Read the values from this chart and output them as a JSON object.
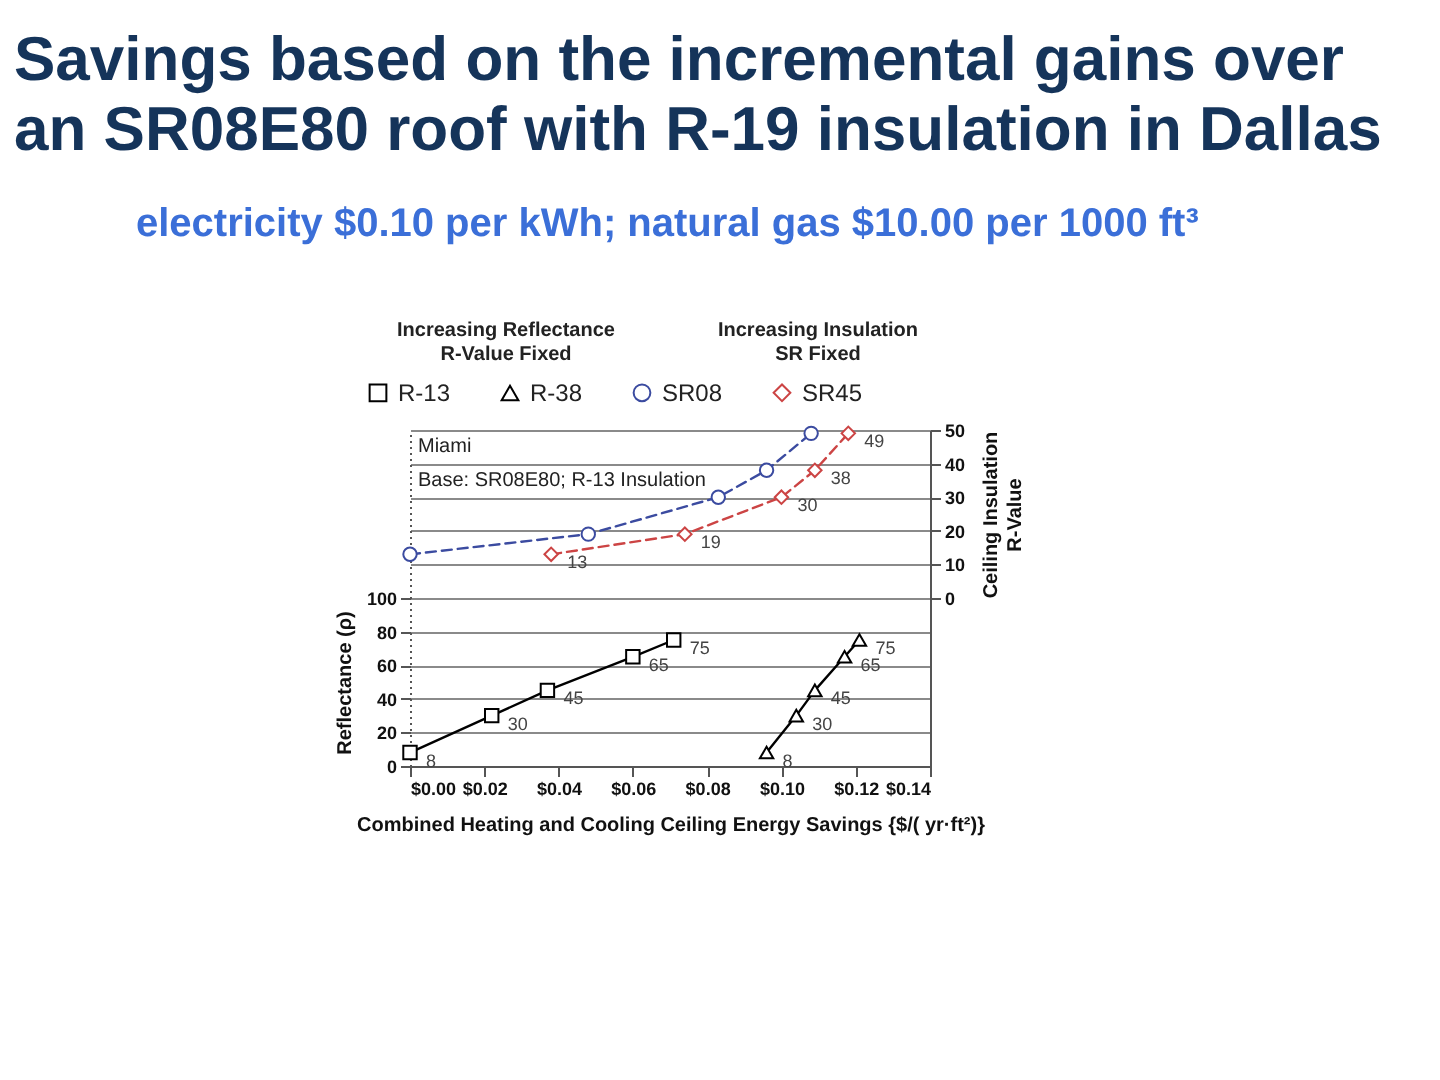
{
  "chart_data": {
    "type": "line",
    "title": "Savings based on the incremental gains over an SR08E80 roof with R-19 insulation in Dallas",
    "subtitle": "electricity $0.10 per kWh; natural gas $10.00 per 1000 ft³",
    "xlabel": "Combined Heating and Cooling Ceiling Energy Savings {$/( yr·ft²)}",
    "ylabel": "Reflectance (ρ)",
    "y2label": "Ceiling Insulation R-Value",
    "annotations": [
      "Increasing Reflectance R-Value Fixed",
      "Increasing Insulation SR Fixed",
      "Miami",
      "Base: SR08E80; R-13 Insulation"
    ],
    "xlim": [
      0,
      0.14
    ],
    "xticks": [
      {
        "value": 0,
        "label": "$0.00"
      },
      {
        "value": 0.02,
        "label": "$0.02"
      },
      {
        "value": 0.04,
        "label": "$0.04"
      },
      {
        "value": 0.06,
        "label": "$0.06"
      },
      {
        "value": 0.08,
        "label": "$0.08"
      },
      {
        "value": 0.1,
        "label": "$0.10"
      },
      {
        "value": 0.12,
        "label": "$0.12"
      },
      {
        "value": 0.14,
        "label": "$0.14"
      }
    ],
    "ylim": [
      0,
      200
    ],
    "yticks": [
      0,
      20,
      40,
      60,
      80,
      100
    ],
    "y2lim": [
      -50,
      50
    ],
    "y2ticks": [
      0,
      10,
      20,
      30,
      40,
      50
    ],
    "grid": "y",
    "legend": "top",
    "series": [
      {
        "name": "R-13",
        "color": "#000000",
        "marker": "square",
        "line_style": "solid",
        "x": [
          0.0,
          0.022,
          0.037,
          0.06,
          0.071
        ],
        "values": [
          8,
          30,
          45,
          65,
          75
        ],
        "value_labels": [
          "8",
          "30",
          "45",
          "65",
          "75"
        ]
      },
      {
        "name": "R-38",
        "color": "#000000",
        "marker": "triangle",
        "line_style": "solid",
        "x": [
          0.096,
          0.104,
          0.109,
          0.117,
          0.121
        ],
        "values": [
          8,
          30,
          45,
          65,
          75
        ],
        "value_labels": [
          "8",
          "30",
          "45",
          "65",
          "75"
        ]
      },
      {
        "name": "SR08",
        "color": "#3b4ba0",
        "marker": "circle",
        "line_style": "dashed",
        "axis": "y2",
        "x": [
          0.0,
          0.048,
          0.083,
          0.096,
          0.108
        ],
        "values": [
          13,
          19,
          30,
          38,
          49
        ]
      },
      {
        "name": "SR45",
        "color": "#cc4444",
        "marker": "diamond",
        "line_style": "dashed",
        "axis": "y2",
        "x": [
          0.038,
          0.074,
          0.1,
          0.109,
          0.118
        ],
        "values": [
          13,
          19,
          30,
          38,
          49
        ],
        "value_labels": [
          "13",
          "19",
          "30",
          "38",
          "49"
        ]
      }
    ]
  }
}
